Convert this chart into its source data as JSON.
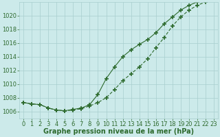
{
  "title": "Graphe pression niveau de la mer (hPa)",
  "x_labels": [
    "0",
    "1",
    "2",
    "3",
    "4",
    "5",
    "6",
    "7",
    "8",
    "9",
    "10",
    "11",
    "12",
    "13",
    "14",
    "15",
    "16",
    "17",
    "18",
    "19",
    "20",
    "21",
    "22",
    "23"
  ],
  "xlim": [
    -0.5,
    23.5
  ],
  "ylim": [
    1005.0,
    1022.0
  ],
  "yticks": [
    1006,
    1008,
    1010,
    1012,
    1014,
    1016,
    1018,
    1020
  ],
  "line1_x": [
    0,
    1,
    2,
    3,
    4,
    5,
    6,
    7,
    8,
    9,
    10,
    11,
    12,
    13,
    14,
    15,
    16,
    17,
    18,
    19,
    20,
    21,
    22,
    23
  ],
  "line1_y": [
    1007.3,
    1007.1,
    1007.0,
    1006.5,
    1006.2,
    1006.1,
    1006.2,
    1006.4,
    1006.8,
    1007.3,
    1008.0,
    1009.2,
    1010.5,
    1011.5,
    1012.5,
    1013.7,
    1015.3,
    1016.8,
    1018.5,
    1019.8,
    1020.8,
    1021.5,
    1022.0,
    1022.5
  ],
  "line2_x": [
    0,
    1,
    2,
    3,
    4,
    5,
    6,
    7,
    8,
    9,
    10,
    11,
    12,
    13,
    14,
    15,
    16,
    17,
    18,
    19,
    20,
    21,
    22,
    23
  ],
  "line2_y": [
    1007.3,
    1007.1,
    1007.0,
    1006.5,
    1006.2,
    1006.1,
    1006.3,
    1006.5,
    1007.0,
    1008.5,
    1010.8,
    1012.5,
    1014.0,
    1015.0,
    1015.8,
    1016.5,
    1017.5,
    1018.8,
    1019.8,
    1020.8,
    1021.5,
    1022.0,
    1022.3,
    1022.5
  ],
  "line_color": "#2d6a2d",
  "bg_color": "#cceaea",
  "grid_color": "#a8cece",
  "title_color": "#2d6a2d",
  "title_fontsize": 7.0,
  "tick_labelsize": 6.0,
  "marker": "+",
  "markersize": 4.0,
  "markeredgewidth": 1.2,
  "linewidth": 0.8
}
